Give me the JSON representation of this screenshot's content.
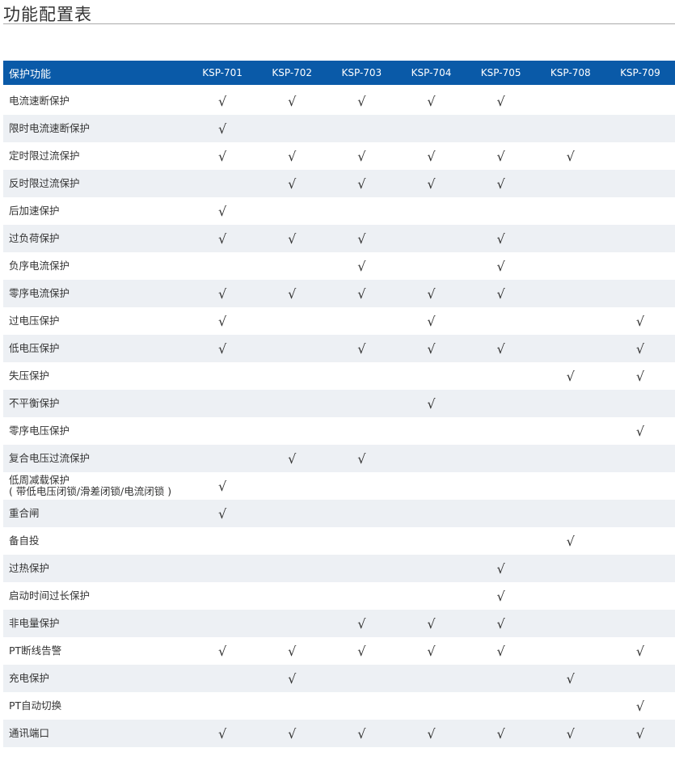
{
  "title": "功能配置表",
  "table": {
    "header": [
      "保护功能",
      "KSP-701",
      "KSP-702",
      "KSP-703",
      "KSP-704",
      "KSP-705",
      "KSP-708",
      "KSP-709"
    ],
    "rows": [
      {
        "name": "电流速断保护",
        "checks": [
          "√",
          "√",
          "√",
          "√",
          "√",
          "",
          ""
        ]
      },
      {
        "name": "限时电流速断保护",
        "checks": [
          "√",
          "",
          "",
          "",
          "",
          "",
          ""
        ]
      },
      {
        "name": "定时限过流保护",
        "checks": [
          "√",
          "√",
          "√",
          "√",
          "√",
          "√",
          ""
        ]
      },
      {
        "name": "反时限过流保护",
        "checks": [
          "",
          "√",
          "√",
          "√",
          "√",
          "",
          ""
        ]
      },
      {
        "name": "后加速保护",
        "checks": [
          "√",
          "",
          "",
          "",
          "",
          "",
          ""
        ]
      },
      {
        "name": "过负荷保护",
        "checks": [
          "√",
          "√",
          "√",
          "",
          "√",
          "",
          ""
        ]
      },
      {
        "name": "负序电流保护",
        "checks": [
          "",
          "",
          "√",
          "",
          "√",
          "",
          ""
        ]
      },
      {
        "name": "零序电流保护",
        "checks": [
          "√",
          "√",
          "√",
          "√",
          "√",
          "",
          ""
        ]
      },
      {
        "name": "过电压保护",
        "checks": [
          "√",
          "",
          "",
          "√",
          "",
          "",
          "√"
        ]
      },
      {
        "name": "低电压保护",
        "checks": [
          "√",
          "",
          "√",
          "√",
          "√",
          "",
          "√"
        ]
      },
      {
        "name": "失压保护",
        "checks": [
          "",
          "",
          "",
          "",
          "",
          "√",
          "√"
        ]
      },
      {
        "name": "不平衡保护",
        "checks": [
          "",
          "",
          "",
          "√",
          "",
          "",
          ""
        ]
      },
      {
        "name": "零序电压保护",
        "checks": [
          "",
          "",
          "",
          "",
          "",
          "",
          "√"
        ]
      },
      {
        "name": "复合电压过流保护",
        "checks": [
          "",
          "√",
          "√",
          "",
          "",
          "",
          ""
        ]
      },
      {
        "name": "低周减载保护",
        "sub": "( 带低电压闭锁/滑差闭锁/电流闭锁 )",
        "checks": [
          "√",
          "",
          "",
          "",
          "",
          "",
          ""
        ]
      },
      {
        "name": "重合闸",
        "checks": [
          "√",
          "",
          "",
          "",
          "",
          "",
          ""
        ]
      },
      {
        "name": "备自投",
        "checks": [
          "",
          "",
          "",
          "",
          "",
          "√",
          ""
        ]
      },
      {
        "name": "过热保护",
        "checks": [
          "",
          "",
          "",
          "",
          "√",
          "",
          ""
        ]
      },
      {
        "name": "启动时间过长保护",
        "checks": [
          "",
          "",
          "",
          "",
          "√",
          "",
          ""
        ]
      },
      {
        "name": "非电量保护",
        "checks": [
          "",
          "",
          "√",
          "√",
          "√",
          "",
          ""
        ]
      },
      {
        "name": "PT断线告警",
        "checks": [
          "√",
          "√",
          "√",
          "√",
          "√",
          "",
          "√"
        ]
      },
      {
        "name": "充电保护",
        "checks": [
          "",
          "√",
          "",
          "",
          "",
          "√",
          ""
        ]
      },
      {
        "name": "PT自动切换",
        "checks": [
          "",
          "",
          "",
          "",
          "",
          "",
          "√"
        ]
      },
      {
        "name": "通讯端口",
        "checks": [
          "√",
          "√",
          "√",
          "√",
          "√",
          "√",
          "√"
        ]
      }
    ]
  },
  "colors": {
    "header_bg": "#0a5aa8",
    "stripe": "#edf0f4"
  }
}
